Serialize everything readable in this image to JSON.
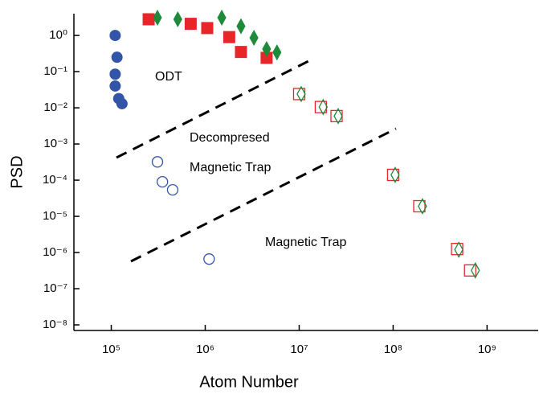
{
  "chart_data": {
    "type": "scatter",
    "x_label": "Atom Number",
    "y_label": "PSD",
    "xlog": true,
    "ylog": true,
    "xlim": [
      40000,
      3500000000
    ],
    "ylim": [
      7e-09,
      4
    ],
    "xticks": [
      {
        "value": 100000,
        "label": "10⁵"
      },
      {
        "value": 1000000,
        "label": "10⁶"
      },
      {
        "value": 10000000,
        "label": "10⁷"
      },
      {
        "value": 100000000,
        "label": "10⁸"
      },
      {
        "value": 1000000000,
        "label": "10⁹"
      }
    ],
    "yticks": [
      {
        "value": 1,
        "label": "10⁰"
      },
      {
        "value": 0.1,
        "label": "10⁻¹"
      },
      {
        "value": 0.01,
        "label": "10⁻²"
      },
      {
        "value": 0.001,
        "label": "10⁻³"
      },
      {
        "value": 0.0001,
        "label": "10⁻⁴"
      },
      {
        "value": 1e-05,
        "label": "10⁻⁵"
      },
      {
        "value": 1e-06,
        "label": "10⁻⁶"
      },
      {
        "value": 1e-07,
        "label": "10⁻⁷"
      },
      {
        "value": 1e-08,
        "label": "10⁻⁸"
      }
    ],
    "annotations": [
      "ODT",
      "Decompresed",
      "Magnetic Trap",
      "Magnetic Trap"
    ],
    "series": [
      {
        "color": "#3355a8",
        "marker": "circle",
        "filled": true,
        "x": [
          110000,
          115000,
          110000,
          110000,
          120000,
          130000
        ],
        "values": [
          1.0,
          0.25,
          0.085,
          0.04,
          0.018,
          0.013
        ]
      },
      {
        "color": "#e8262a",
        "marker": "square",
        "filled": true,
        "x": [
          250000,
          700000,
          1050000,
          1800000,
          2400000,
          4500000
        ],
        "values": [
          2.8,
          2.1,
          1.6,
          0.9,
          0.35,
          0.24
        ]
      },
      {
        "color": "#1e8a3a",
        "marker": "diamond",
        "filled": true,
        "x": [
          310000,
          510000,
          1500000,
          2400000,
          3300000,
          4500000,
          5800000
        ],
        "values": [
          3.1,
          2.8,
          3.1,
          1.8,
          0.86,
          0.42,
          0.34
        ]
      },
      {
        "color": "#3355a8",
        "marker": "circle",
        "filled": false,
        "x": [
          310000,
          350000,
          450000,
          1100000
        ],
        "values": [
          0.00032,
          9e-05,
          5.4e-05,
          6.6e-07
        ]
      },
      {
        "color": "#e8262a",
        "marker": "square",
        "filled": false,
        "x": [
          10000000,
          17000000,
          25000000,
          100000000,
          190000000,
          480000000,
          660000000
        ],
        "values": [
          0.024,
          0.0105,
          0.0059,
          0.00014,
          1.9e-05,
          1.25e-06,
          3.2e-07
        ]
      },
      {
        "color": "#1e8a3a",
        "marker": "diamond",
        "filled": false,
        "x": [
          10500000,
          18000000,
          26000000,
          105000000,
          205000000,
          500000000,
          750000000
        ],
        "values": [
          0.024,
          0.0105,
          0.0059,
          0.00014,
          1.9e-05,
          1.2e-06,
          3.2e-07
        ]
      }
    ]
  }
}
